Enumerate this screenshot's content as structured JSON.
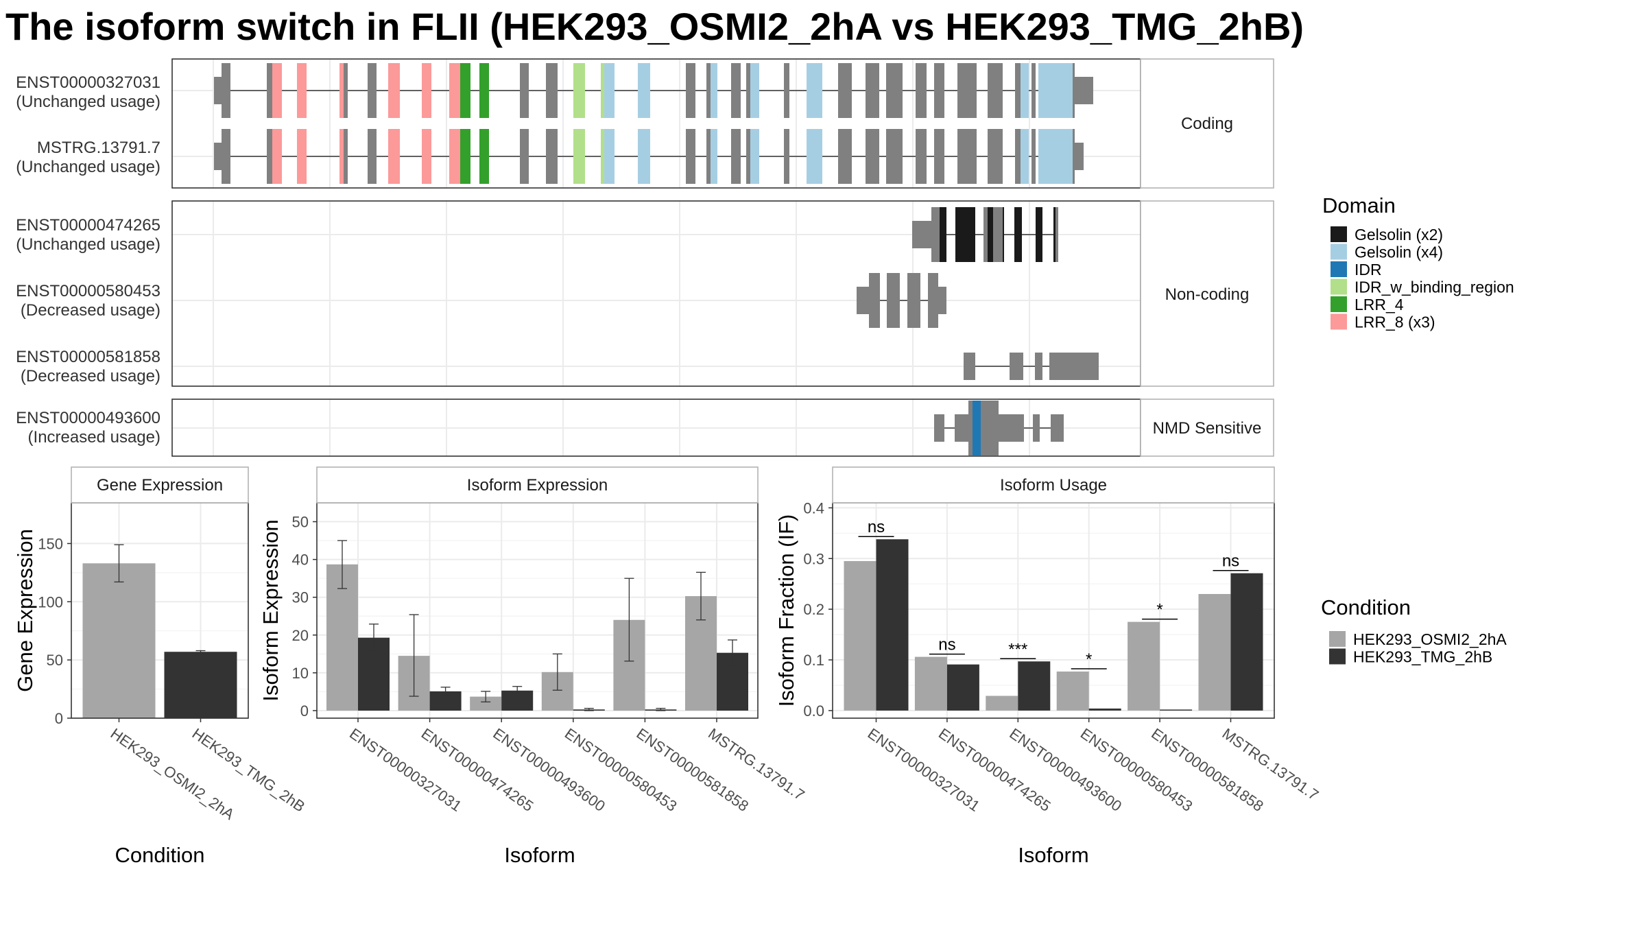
{
  "title": "The isoform switch in FLII (HEK293_OSMI2_2hA vs HEK293_TMG_2hB)",
  "colors": {
    "exon_default": "#808080",
    "domains": {
      "Gelsolin (x2)": "#1a1a1a",
      "Gelsolin (x4)": "#a6cee3",
      "IDR": "#1f78b4",
      "IDR_w_binding_region": "#b2df8a",
      "LRR_4": "#33a02c",
      "LRR_8 (x3)": "#fb9a99"
    },
    "condition_a": "#a6a6a6",
    "condition_b": "#333333"
  },
  "structure": {
    "groups": [
      {
        "name": "Coding",
        "transcripts": [
          {
            "id": "ENST00000327031",
            "usage": "(Unchanged usage)"
          },
          {
            "id": "MSTRG.13791.7",
            "usage": "(Unchanged usage)"
          }
        ]
      },
      {
        "name": "Non-coding",
        "transcripts": [
          {
            "id": "ENST00000474265",
            "usage": "(Unchanged usage)"
          },
          {
            "id": "ENST00000580453",
            "usage": "(Decreased usage)"
          },
          {
            "id": "ENST00000581858",
            "usage": "(Decreased usage)"
          }
        ]
      },
      {
        "name": "NMD Sensitive",
        "transcripts": [
          {
            "id": "ENST00000493600",
            "usage": "(Increased usage)"
          }
        ]
      }
    ]
  },
  "legend_domain": {
    "title": "Domain",
    "items": [
      "Gelsolin (x2)",
      "Gelsolin (x4)",
      "IDR",
      "IDR_w_binding_region",
      "LRR_4",
      "LRR_8 (x3)"
    ]
  },
  "legend_condition": {
    "title": "Condition",
    "items": [
      "HEK293_OSMI2_2hA",
      "HEK293_TMG_2hB"
    ]
  },
  "chart_data": [
    {
      "type": "bar",
      "title": "Gene Expression",
      "xlabel": "Condition",
      "ylabel": "Gene Expression",
      "categories": [
        "HEK293_OSMI2_2hA",
        "HEK293_TMG_2hB"
      ],
      "values": [
        133,
        57
      ],
      "error_low": [
        117,
        56
      ],
      "error_high": [
        149,
        58
      ],
      "ylim": [
        0,
        185
      ],
      "yticks": [
        0,
        50,
        100,
        150
      ]
    },
    {
      "type": "bar",
      "title": "Isoform Expression",
      "xlabel": "Isoform",
      "ylabel": "Isoform Expression",
      "categories": [
        "ENST00000327031",
        "ENST00000474265",
        "ENST00000493600",
        "ENST00000580453",
        "ENST00000581858",
        "MSTRG.13791.7"
      ],
      "series": [
        {
          "name": "HEK293_OSMI2_2hA",
          "values": [
            38.7,
            14.5,
            3.7,
            10.2,
            24.0,
            30.3
          ],
          "error_low": [
            32.3,
            3.8,
            2.3,
            5.4,
            13.1,
            24.0
          ],
          "error_high": [
            45.0,
            25.4,
            5.1,
            15.0,
            35.0,
            36.6
          ]
        },
        {
          "name": "HEK293_TMG_2hB",
          "values": [
            19.3,
            5.1,
            5.3,
            0.3,
            0.3,
            15.3
          ],
          "error_low": [
            15.7,
            4.0,
            4.2,
            0.0,
            0.0,
            12.0
          ],
          "error_high": [
            22.9,
            6.2,
            6.4,
            0.6,
            0.6,
            18.7
          ]
        }
      ],
      "ylim": [
        -2,
        55
      ],
      "yticks": [
        0,
        10,
        20,
        30,
        40,
        50
      ]
    },
    {
      "type": "bar",
      "title": "Isoform Usage",
      "xlabel": "Isoform",
      "ylabel": "Isoform Fraction (IF)",
      "categories": [
        "ENST00000327031",
        "ENST00000474265",
        "ENST00000493600",
        "ENST00000580453",
        "ENST00000581858",
        "MSTRG.13791.7"
      ],
      "series": [
        {
          "name": "HEK293_OSMI2_2hA",
          "values": [
            0.295,
            0.106,
            0.029,
            0.077,
            0.175,
            0.23
          ]
        },
        {
          "name": "HEK293_TMG_2hB",
          "values": [
            0.338,
            0.091,
            0.097,
            0.004,
            0.002,
            0.271
          ]
        }
      ],
      "significance": [
        "ns",
        "ns",
        "***",
        "*",
        "*",
        "ns"
      ],
      "ylim": [
        -0.015,
        0.41
      ],
      "yticks": [
        0.0,
        0.1,
        0.2,
        0.3,
        0.4
      ],
      "ytick_labels": [
        "0.0",
        "0.1",
        "0.2",
        "0.3",
        "0.4"
      ]
    }
  ]
}
